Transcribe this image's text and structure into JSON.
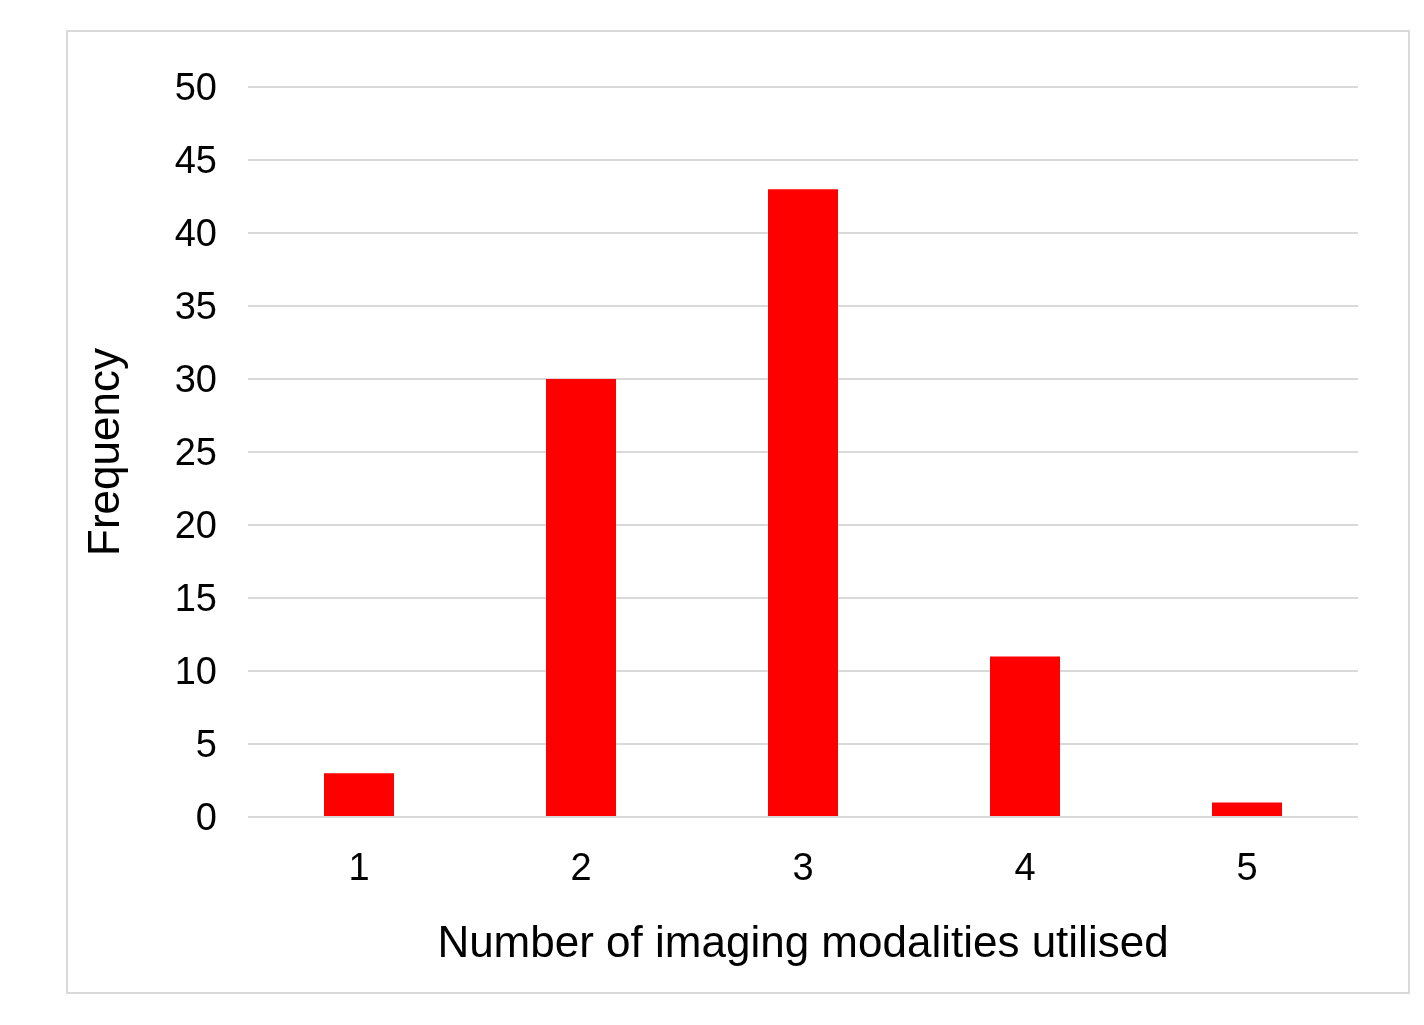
{
  "chart_data": {
    "type": "bar",
    "xlabel": "Number of imaging modalities utilised",
    "ylabel": "Frequency",
    "categories": [
      "1",
      "2",
      "3",
      "4",
      "5"
    ],
    "values": [
      3,
      30,
      43,
      11,
      1
    ],
    "color": "#ff0000",
    "ylim": [
      0,
      50
    ],
    "yticks": [
      0,
      5,
      10,
      15,
      20,
      25,
      30,
      35,
      40,
      45,
      50
    ],
    "grid": "y"
  }
}
